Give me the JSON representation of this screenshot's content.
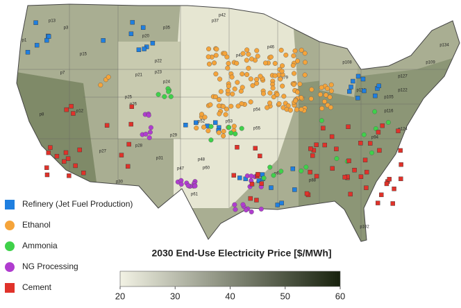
{
  "map": {
    "legend": [
      {
        "label": "Refinery (Jet Fuel Production)",
        "color": "#1f7fe0",
        "shape": "square"
      },
      {
        "label": "Ethanol",
        "color": "#f5a43a",
        "shape": "circle"
      },
      {
        "label": "Ammonia",
        "color": "#3fd14a",
        "shape": "circle"
      },
      {
        "label": "NG Processing",
        "color": "#b03ccf",
        "shape": "circle"
      },
      {
        "label": "Cement",
        "color": "#e0322a",
        "shape": "square"
      }
    ],
    "colorbar": {
      "title": "2030 End-Use Electricity Price [$/MWh]",
      "range": [
        20,
        60
      ],
      "ticks": [
        20,
        30,
        40,
        50,
        60
      ],
      "colors": [
        "#f2f2e4",
        "#18220e"
      ]
    },
    "regions": [
      "p1",
      "p3",
      "p7",
      "p8",
      "p12",
      "p13",
      "p15",
      "p20",
      "p21",
      "p22",
      "p23",
      "p24",
      "p25",
      "p26",
      "p27",
      "p28",
      "p29",
      "p30",
      "p31",
      "p35",
      "p37",
      "p42",
      "p43",
      "p46",
      "p47",
      "p48",
      "p52",
      "p53",
      "p54",
      "p55",
      "p60",
      "p61",
      "p65",
      "p79",
      "p88",
      "p94",
      "p102",
      "p105",
      "p108",
      "p109",
      "p114",
      "p116",
      "p122",
      "p124",
      "p127",
      "p134"
    ]
  }
}
